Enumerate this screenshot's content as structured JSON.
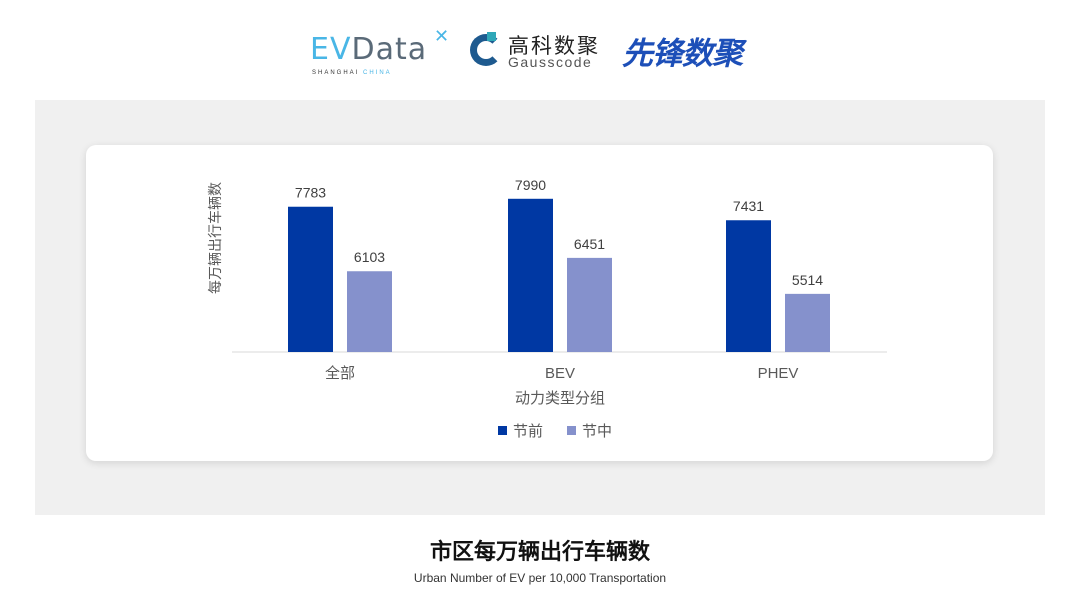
{
  "logos": {
    "evdata": {
      "main": "EVData",
      "sub_a": "SHANGHAI",
      "sub_b": "CHINA"
    },
    "gausscode": {
      "cn": "高科数聚",
      "en": "Gausscode"
    },
    "xianfeng": "先锋数聚"
  },
  "title": "市区每万辆出行车辆数",
  "subtitle": "Urban Number of EV per 10,000 Transportation",
  "chart_data": {
    "type": "bar",
    "categories": [
      "全部",
      "BEV",
      "PHEV"
    ],
    "series": [
      {
        "name": "节前",
        "values": [
          7783,
          7990,
          7431
        ],
        "color": "#0038a3"
      },
      {
        "name": "节中",
        "values": [
          6103,
          6451,
          5514
        ],
        "color": "#8591cc"
      }
    ],
    "xlabel": "动力类型分组",
    "ylabel": "每万辆出行车辆数",
    "ylim": [
      4000,
      9000
    ],
    "grid": false,
    "legend": "bottom",
    "data_labels": true
  }
}
